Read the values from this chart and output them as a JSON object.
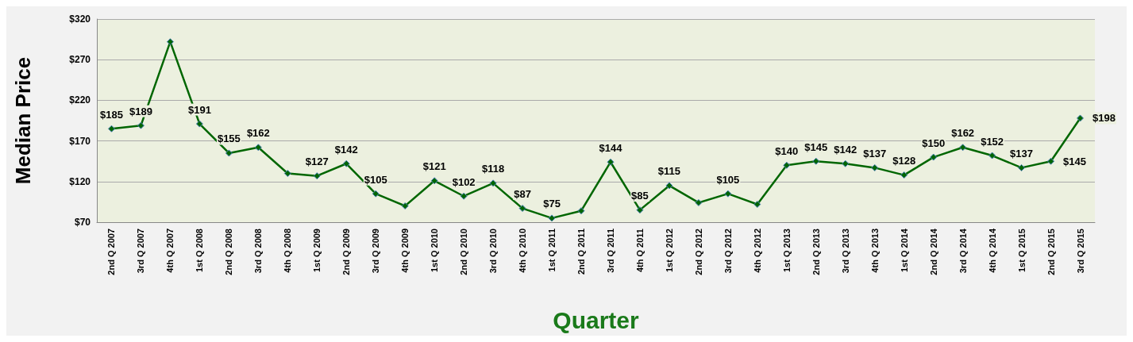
{
  "chart_data": {
    "type": "line",
    "xlabel": "Quarter",
    "ylabel": "Median Price",
    "categories": [
      "2nd Q 2007",
      "3rd Q 2007",
      "4th Q 2007",
      "1st Q 2008",
      "2nd Q 2008",
      "3rd Q 2008",
      "4th Q 2008",
      "1st Q 2009",
      "2nd Q 2009",
      "3rd Q 2009",
      "4th Q 2009",
      "1st Q 2010",
      "2nd Q 2010",
      "3rd Q 2010",
      "4th Q 2010",
      "1st Q 2011",
      "2nd Q 2011",
      "3rd Q 2011",
      "4th Q 2011",
      "1st Q 2012",
      "2nd Q 2012",
      "3rd Q 2012",
      "4th Q 2012",
      "1st Q 2013",
      "2nd Q 2013",
      "3rd Q 2013",
      "4th Q 2013",
      "1st Q 2014",
      "2nd Q 2014",
      "3rd Q 2014",
      "4th Q 2014",
      "1st Q 2015",
      "2nd Q 2015",
      "3rd Q 2015"
    ],
    "series": [
      {
        "color": "#006600",
        "values": [
          185,
          189,
          292,
          191,
          155,
          162,
          130,
          127,
          142,
          105,
          90,
          121,
          102,
          118,
          87,
          75,
          84,
          144,
          85,
          115,
          94,
          105,
          92,
          140,
          145,
          142,
          137,
          128,
          150,
          162,
          152,
          137,
          145,
          198
        ],
        "value_labels": [
          "$185",
          "$189",
          null,
          "$191",
          "$155",
          "$162",
          null,
          "$127",
          "$142",
          "$105",
          null,
          "$121",
          "$102",
          "$118",
          "$87",
          "$75",
          null,
          "$144",
          "$85",
          "$115",
          null,
          "$105",
          null,
          "$140",
          "$145",
          "$142",
          "$137",
          "$128",
          "$150",
          "$162",
          "$152",
          "$137",
          "$145",
          "$198"
        ]
      }
    ],
    "ylim": [
      70,
      320
    ],
    "yticks": [
      {
        "value": 70,
        "label": "$70"
      },
      {
        "value": 120,
        "label": "$120"
      },
      {
        "value": 170,
        "label": "$170"
      },
      {
        "value": 220,
        "label": "$220"
      },
      {
        "value": 270,
        "label": "$270"
      },
      {
        "value": 320,
        "label": "$320"
      }
    ],
    "grid": "y",
    "marker": "diamond",
    "line_style": "solid"
  }
}
